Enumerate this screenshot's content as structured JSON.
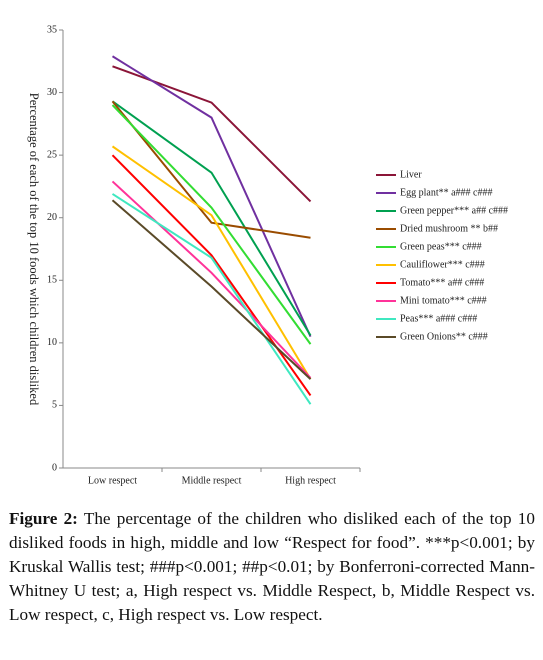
{
  "chart_data": {
    "type": "line",
    "y_label": "Percentage of each of the top 10 foods which children disliked",
    "categories": [
      "Low respect",
      "Middle respect",
      "High respect"
    ],
    "ylim": [
      0,
      35
    ],
    "yticks": [
      0,
      5,
      10,
      15,
      20,
      25,
      30,
      35
    ],
    "series": [
      {
        "name": "Liver",
        "color": "#8b1538",
        "values": [
          32.1,
          29.2,
          21.3
        ]
      },
      {
        "name": "Egg plant** a### c###",
        "color": "#7030a0",
        "values": [
          32.9,
          28.0,
          10.5
        ]
      },
      {
        "name": "Green pepper*** a## c###",
        "color": "#00a050",
        "values": [
          29.3,
          23.6,
          10.6
        ]
      },
      {
        "name": "Dried mushroom ** b##",
        "color": "#9a4c00",
        "values": [
          29.3,
          19.6,
          18.4
        ]
      },
      {
        "name": "Green peas*** c###",
        "color": "#33dd33",
        "values": [
          29.0,
          20.8,
          9.9
        ]
      },
      {
        "name": "Cauliflower*** c###",
        "color": "#ffc000",
        "values": [
          25.7,
          20.2,
          7.1
        ]
      },
      {
        "name": "Tomato*** a## c###",
        "color": "#ff0000",
        "values": [
          25.0,
          17.0,
          5.8
        ]
      },
      {
        "name": "Mini tomato*** c###",
        "color": "#ff3399",
        "values": [
          22.9,
          15.6,
          7.2
        ]
      },
      {
        "name": "Peas*** a### c###",
        "color": "#3fe8c0",
        "values": [
          21.9,
          16.8,
          5.1
        ]
      },
      {
        "name": "Green Onions** c###",
        "color": "#5a4a28",
        "values": [
          21.4,
          14.5,
          7.1
        ]
      }
    ]
  },
  "caption": {
    "label": "Figure 2:",
    "text": " The percentage of the children who disliked each of the top 10 disliked foods in high, middle and low “Respect for food”. ***p<0.001; by Kruskal Wallis test; ###p<0.001; ##p<0.01; by Bonferroni-corrected Mann-Whitney U test; a, High respect vs. Middle Respect, b, Middle Respect vs. Low respect, c, High respect vs. Low respect."
  }
}
